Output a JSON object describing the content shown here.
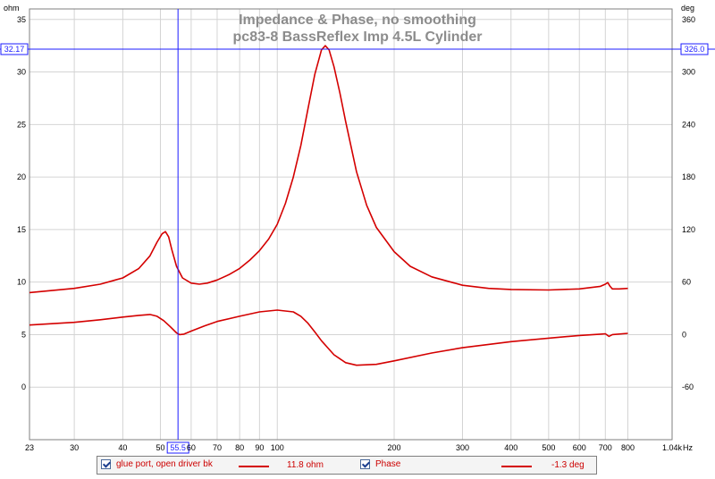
{
  "chart_data": {
    "type": "line",
    "title": "Impedance & Phase, no smoothing",
    "subtitle": "pc83-8 BassReflex Imp 4.5L Cylinder",
    "x_axis": {
      "scale": "log",
      "range": [
        23,
        1040
      ],
      "unit_label": "Hz",
      "ticks": [
        "23",
        "30",
        "40",
        "50",
        "55.5",
        "60",
        "70",
        "80",
        "90",
        "100",
        "200",
        "300",
        "400",
        "500",
        "600",
        "700",
        "800",
        "1.04k"
      ]
    },
    "y_axis_left": {
      "label": "ohm",
      "range": [
        -5,
        36
      ],
      "ticks": [
        "0",
        "5",
        "10",
        "15",
        "20",
        "25",
        "30",
        "35"
      ]
    },
    "y_axis_right": {
      "label": "deg",
      "range": [
        -120,
        372
      ],
      "ticks": [
        "-60",
        "0",
        "60",
        "120",
        "180",
        "240",
        "300",
        "360"
      ]
    },
    "cursor": {
      "x": 55.5,
      "x_label": "55.5",
      "y_left": 32.17,
      "y_left_label": "32.17",
      "y_right_label": "326.0"
    },
    "grid": true,
    "series": [
      {
        "name": "glue port, open driver bk",
        "axis": "left",
        "color": "#d40000",
        "points": [
          [
            23,
            9.0
          ],
          [
            30,
            9.4
          ],
          [
            35,
            9.8
          ],
          [
            40,
            10.4
          ],
          [
            44,
            11.3
          ],
          [
            47,
            12.5
          ],
          [
            49,
            13.8
          ],
          [
            50.5,
            14.6
          ],
          [
            51.5,
            14.8
          ],
          [
            52.5,
            14.3
          ],
          [
            53.5,
            13.1
          ],
          [
            55,
            11.5
          ],
          [
            57,
            10.4
          ],
          [
            60,
            9.9
          ],
          [
            63,
            9.8
          ],
          [
            66,
            9.9
          ],
          [
            70,
            10.2
          ],
          [
            75,
            10.7
          ],
          [
            80,
            11.3
          ],
          [
            85,
            12.1
          ],
          [
            90,
            13.0
          ],
          [
            95,
            14.1
          ],
          [
            100,
            15.5
          ],
          [
            105,
            17.5
          ],
          [
            110,
            20.0
          ],
          [
            115,
            23.0
          ],
          [
            120,
            26.5
          ],
          [
            125,
            29.8
          ],
          [
            130,
            32.1
          ],
          [
            133,
            32.5
          ],
          [
            136,
            32.1
          ],
          [
            140,
            30.5
          ],
          [
            145,
            28.0
          ],
          [
            150,
            25.3
          ],
          [
            160,
            20.5
          ],
          [
            170,
            17.3
          ],
          [
            180,
            15.2
          ],
          [
            200,
            12.9
          ],
          [
            220,
            11.5
          ],
          [
            250,
            10.5
          ],
          [
            300,
            9.7
          ],
          [
            350,
            9.4
          ],
          [
            400,
            9.3
          ],
          [
            500,
            9.25
          ],
          [
            600,
            9.35
          ],
          [
            680,
            9.6
          ],
          [
            700,
            9.8
          ],
          [
            710,
            9.95
          ],
          [
            720,
            9.6
          ],
          [
            730,
            9.35
          ],
          [
            760,
            9.35
          ],
          [
            800,
            9.4
          ]
        ]
      },
      {
        "name": "Phase",
        "axis": "right",
        "color": "#d40000",
        "points": [
          [
            23,
            11
          ],
          [
            30,
            14
          ],
          [
            35,
            17
          ],
          [
            40,
            20
          ],
          [
            44,
            22
          ],
          [
            47,
            23
          ],
          [
            49,
            21
          ],
          [
            51,
            16
          ],
          [
            53,
            9
          ],
          [
            55,
            2
          ],
          [
            56,
            0
          ],
          [
            57.5,
            0.5
          ],
          [
            60,
            4
          ],
          [
            65,
            10
          ],
          [
            70,
            15
          ],
          [
            80,
            21
          ],
          [
            90,
            26
          ],
          [
            100,
            28
          ],
          [
            110,
            26
          ],
          [
            115,
            21
          ],
          [
            120,
            13
          ],
          [
            125,
            3
          ],
          [
            130,
            -7
          ],
          [
            140,
            -23
          ],
          [
            150,
            -32
          ],
          [
            160,
            -35
          ],
          [
            180,
            -34
          ],
          [
            200,
            -30
          ],
          [
            250,
            -21
          ],
          [
            300,
            -15
          ],
          [
            400,
            -8
          ],
          [
            500,
            -4
          ],
          [
            600,
            -1
          ],
          [
            680,
            0.5
          ],
          [
            700,
            1
          ],
          [
            715,
            -2
          ],
          [
            730,
            0
          ],
          [
            800,
            1.5
          ]
        ]
      }
    ],
    "legend_values": [
      "11.8 ohm",
      "-1.3 deg"
    ]
  },
  "legend": {
    "item1_label": "glue port, open driver bk",
    "item1_value": "11.8 ohm",
    "item2_label": "Phase",
    "item2_value": "-1.3 deg"
  }
}
